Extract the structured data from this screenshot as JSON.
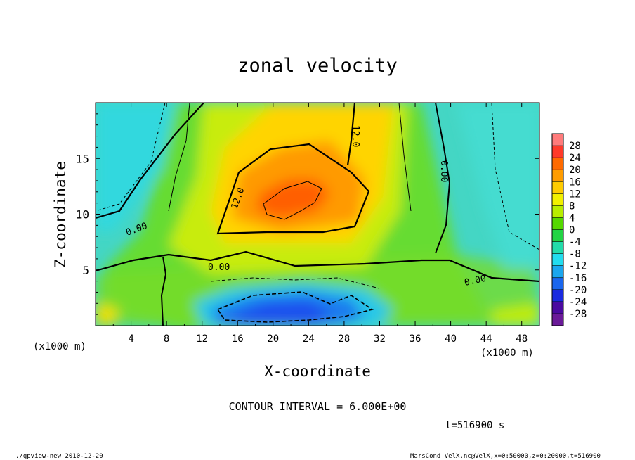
{
  "chart_data": {
    "type": "heatmap",
    "title": "zonal velocity",
    "xlabel": "X-coordinate",
    "ylabel": "Z-coordinate",
    "x_unit_label": "(x1000 m)",
    "y_unit_label": "(x1000 m)",
    "xlim": [
      0,
      50
    ],
    "ylim": [
      0,
      20
    ],
    "x_ticks": [
      4,
      8,
      12,
      16,
      20,
      24,
      28,
      32,
      36,
      40,
      44,
      48
    ],
    "y_ticks": [
      5,
      10,
      15
    ],
    "colorbar": {
      "levels": [
        -28,
        -24,
        -20,
        -16,
        -12,
        -8,
        -4,
        0,
        4,
        8,
        12,
        16,
        20,
        24,
        28
      ],
      "labels": [
        "28",
        "24",
        "20",
        "16",
        "12",
        "8",
        "4",
        "0",
        "-4",
        "-8",
        "-12",
        "-16",
        "-20",
        "-24",
        "-28"
      ],
      "colors": [
        "#ff7b7b",
        "#ff3a2a",
        "#ff6a00",
        "#ff9c00",
        "#ffcc00",
        "#f2f000",
        "#b8ee00",
        "#55d800",
        "#22d444",
        "#22dcaa",
        "#22dcee",
        "#1aa6ee",
        "#1a66ee",
        "#1a2ae0",
        "#4a0aa0",
        "#6a1a98"
      ]
    },
    "contour_interval": "CONTOUR INTERVAL = 6.000E+00",
    "contour_labels": [
      "12.0",
      "12.0",
      "0.00",
      "0.00",
      "0.00",
      "0.00"
    ],
    "features": [
      {
        "kind": "max",
        "x": 23,
        "z": 11,
        "value": 20
      },
      {
        "kind": "min",
        "x": 23,
        "z": 1.2,
        "value": -16
      }
    ]
  },
  "time_label": "t=516900 s",
  "footer_left": "./gpview-new   2010-12-20",
  "footer_right": "MarsCond_VelX.nc@VelX,x=0:50000,z=0:20000,t=516900"
}
